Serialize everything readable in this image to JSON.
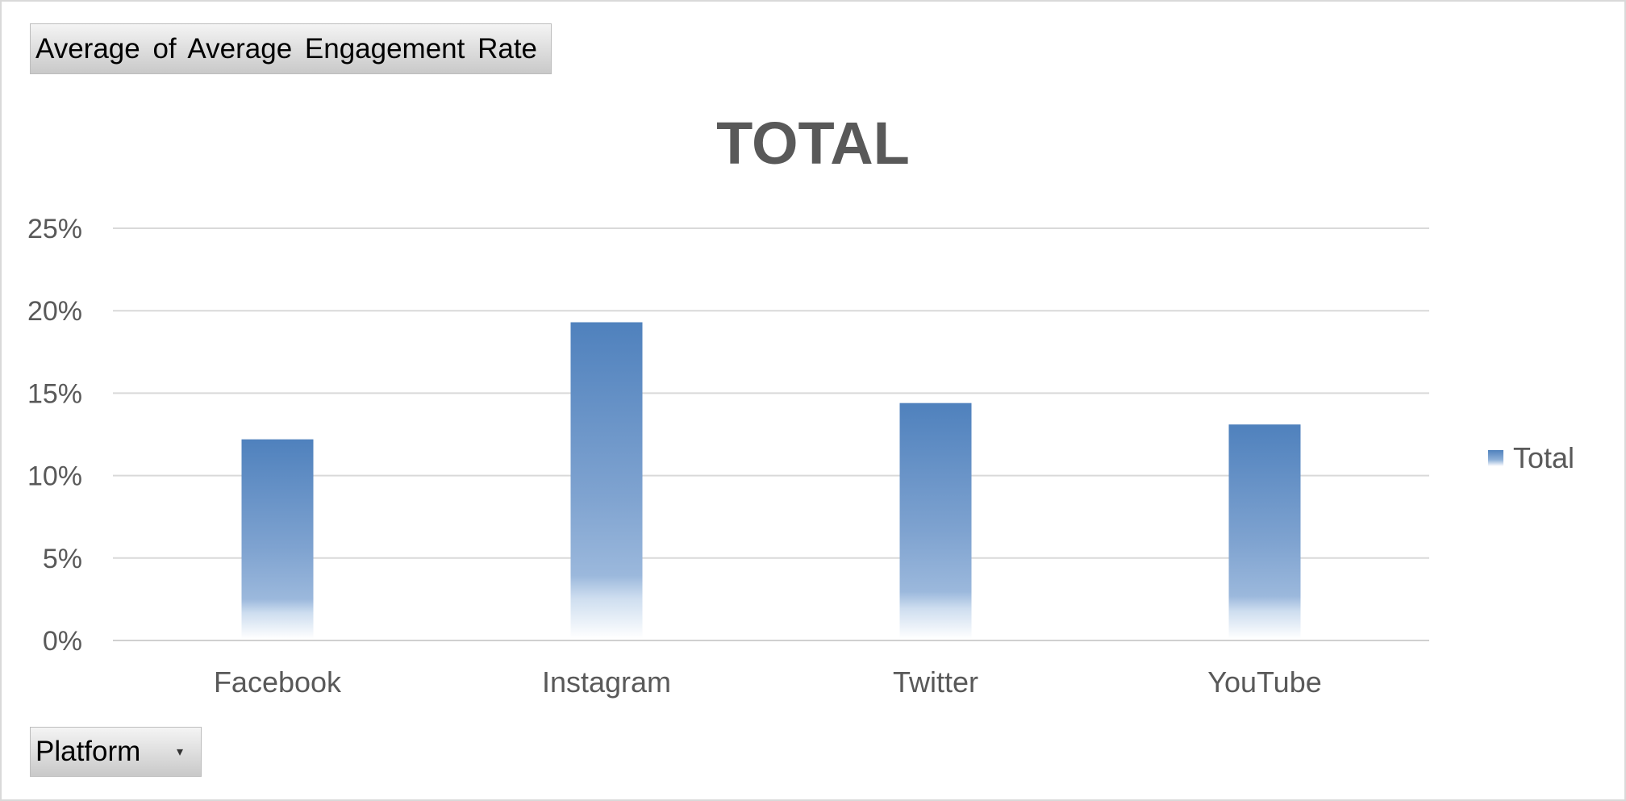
{
  "pivot": {
    "values_field": "Average of Average Engagement Rate",
    "axis_field": "Platform",
    "axis_dropdown_icon": "chevron-down-icon"
  },
  "chart_data": {
    "type": "bar",
    "title": "TOTAL",
    "categories": [
      "Facebook",
      "Instagram",
      "Twitter",
      "YouTube"
    ],
    "series": [
      {
        "name": "Total",
        "values": [
          12.2,
          19.3,
          14.4,
          13.1
        ],
        "color": "#4f81bd"
      }
    ],
    "ylim": [
      0,
      25
    ],
    "yticks": [
      "0%",
      "5%",
      "10%",
      "15%",
      "20%",
      "25%"
    ],
    "grid": true,
    "legend": "right",
    "xlabel": "",
    "ylabel": ""
  }
}
